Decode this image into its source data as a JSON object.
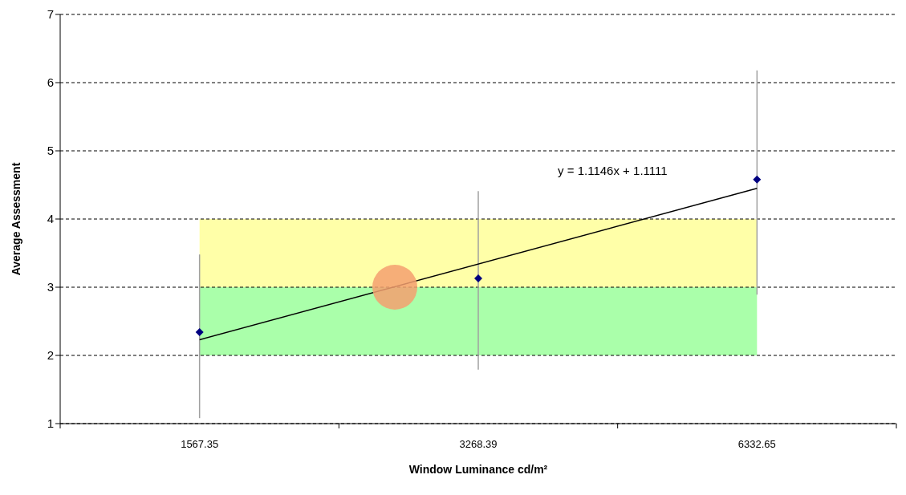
{
  "chart_data": {
    "type": "scatter",
    "xlabel": "Window Luminance cd/m²",
    "ylabel": "Average Assessment",
    "categories": [
      "1567.35",
      "3268.39",
      "6332.65"
    ],
    "ylim": [
      1,
      7
    ],
    "yticks": [
      1,
      2,
      3,
      4,
      5,
      6,
      7
    ],
    "grid": "y",
    "series": [
      {
        "color": "#000080",
        "marker": "diamond",
        "values": [
          2.34,
          3.13,
          4.58
        ],
        "errors": [
          [
            1.08,
            3.48
          ],
          [
            1.79,
            4.41
          ],
          [
            2.89,
            6.18
          ]
        ]
      },
      {
        "type": "line",
        "color": "#000000",
        "marker": "none",
        "values": [
          2.23,
          null,
          4.45
        ]
      }
    ],
    "bands": [
      {
        "axis": "y",
        "from": 2,
        "to": 3,
        "color": "#aaffaa"
      },
      {
        "axis": "y",
        "from": 3,
        "to": 4,
        "color": "#ffffa8"
      }
    ],
    "annotations": [
      "y = 1.1146x + 1.1111"
    ]
  }
}
